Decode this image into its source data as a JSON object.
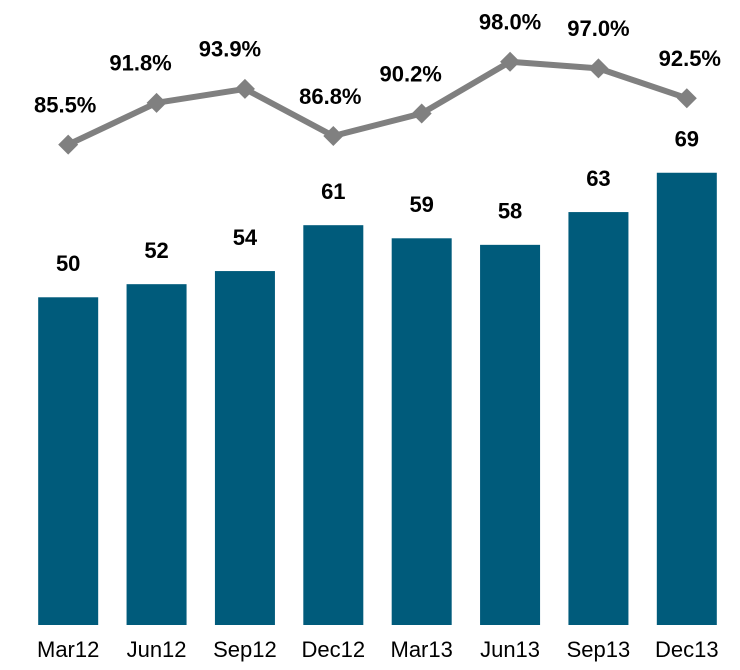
{
  "chart_data": {
    "type": "bar-line",
    "categories": [
      "Mar12",
      "Jun12",
      "Sep12",
      "Dec12",
      "Mar13",
      "Jun13",
      "Sep13",
      "Dec13"
    ],
    "series": [
      {
        "type": "bar",
        "color": "#005b7b",
        "values": [
          50,
          52,
          54,
          61,
          59,
          58,
          63,
          69
        ]
      },
      {
        "type": "line",
        "axis": "y2",
        "color": "#808080",
        "values": [
          85.5,
          91.8,
          93.9,
          86.8,
          90.2,
          98.0,
          97.0,
          92.5
        ],
        "value_labels": [
          "85.5%",
          "91.8%",
          "93.9%",
          "86.8%",
          "90.2%",
          "98.0%",
          "97.0%",
          "92.5%"
        ]
      }
    ],
    "ylim": [
      0,
      92
    ],
    "y2lim": [
      13,
      104
    ]
  }
}
